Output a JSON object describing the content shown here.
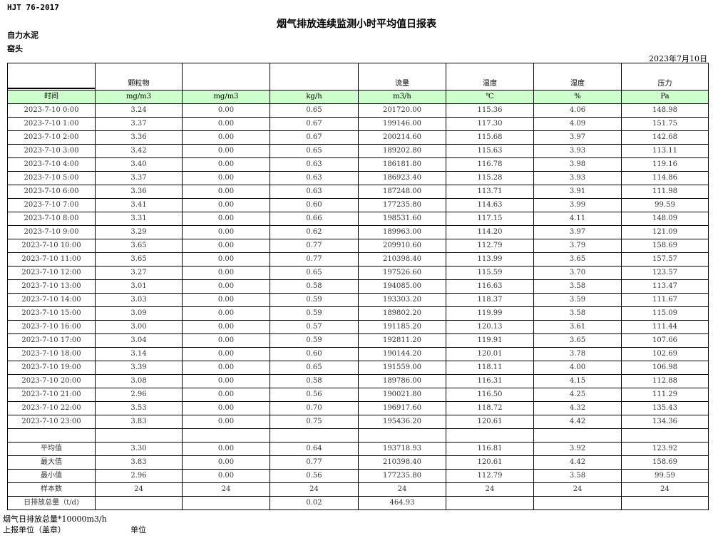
{
  "header": {
    "standard": "HJT  76-2017",
    "title": "烟气排放连续监测小时平均值日报表",
    "company": "自力水泥",
    "location": "窑头",
    "date": "2023年7月10日"
  },
  "table": {
    "top_headers": [
      "",
      "颗粒物",
      "",
      "",
      "流量",
      "温度",
      "湿度",
      "压力"
    ],
    "units": [
      "时间",
      "mg/m3",
      "mg/m3",
      "kg/h",
      "m3/h",
      "℃",
      "%",
      "Pa"
    ],
    "rows": [
      [
        "2023-7-10 0:00",
        "3.24",
        "0.00",
        "0.65",
        "201720.00",
        "115.36",
        "4.06",
        "148.98"
      ],
      [
        "2023-7-10 1:00",
        "3.37",
        "0.00",
        "0.67",
        "199146.00",
        "117.30",
        "4.09",
        "151.75"
      ],
      [
        "2023-7-10 2:00",
        "3.36",
        "0.00",
        "0.67",
        "200214.60",
        "115.68",
        "3.97",
        "142.68"
      ],
      [
        "2023-7-10 3:00",
        "3.42",
        "0.00",
        "0.65",
        "189202.80",
        "115.63",
        "3.93",
        "113.11"
      ],
      [
        "2023-7-10 4:00",
        "3.40",
        "0.00",
        "0.63",
        "186181.80",
        "116.78",
        "3.98",
        "119.16"
      ],
      [
        "2023-7-10 5:00",
        "3.37",
        "0.00",
        "0.63",
        "186923.40",
        "115.28",
        "3.93",
        "114.86"
      ],
      [
        "2023-7-10 6:00",
        "3.36",
        "0.00",
        "0.63",
        "187248.00",
        "113.71",
        "3.91",
        "111.98"
      ],
      [
        "2023-7-10 7:00",
        "3.41",
        "0.00",
        "0.60",
        "177235.80",
        "114.63",
        "3.99",
        "99.59"
      ],
      [
        "2023-7-10 8:00",
        "3.31",
        "0.00",
        "0.66",
        "198531.60",
        "117.15",
        "4.11",
        "148.09"
      ],
      [
        "2023-7-10 9:00",
        "3.29",
        "0.00",
        "0.62",
        "189963.00",
        "114.20",
        "3.97",
        "121.09"
      ],
      [
        "2023-7-10 10:00",
        "3.65",
        "0.00",
        "0.77",
        "209910.60",
        "112.79",
        "3.79",
        "158.69"
      ],
      [
        "2023-7-10 11:00",
        "3.65",
        "0.00",
        "0.77",
        "210398.40",
        "113.99",
        "3.65",
        "157.57"
      ],
      [
        "2023-7-10 12:00",
        "3.27",
        "0.00",
        "0.65",
        "197526.60",
        "115.59",
        "3.70",
        "123.57"
      ],
      [
        "2023-7-10 13:00",
        "3.01",
        "0.00",
        "0.58",
        "194085.00",
        "116.63",
        "3.58",
        "113.47"
      ],
      [
        "2023-7-10 14:00",
        "3.03",
        "0.00",
        "0.59",
        "193303.20",
        "118.37",
        "3.59",
        "111.67"
      ],
      [
        "2023-7-10 15:00",
        "3.09",
        "0.00",
        "0.59",
        "189802.20",
        "119.99",
        "3.58",
        "115.09"
      ],
      [
        "2023-7-10 16:00",
        "3.00",
        "0.00",
        "0.57",
        "191185.20",
        "120.13",
        "3.61",
        "111.44"
      ],
      [
        "2023-7-10 17:00",
        "3.04",
        "0.00",
        "0.59",
        "192811.20",
        "119.91",
        "3.65",
        "107.66"
      ],
      [
        "2023-7-10 18:00",
        "3.14",
        "0.00",
        "0.60",
        "190144.20",
        "120.01",
        "3.78",
        "102.69"
      ],
      [
        "2023-7-10 19:00",
        "3.39",
        "0.00",
        "0.65",
        "191559.00",
        "118.11",
        "4.00",
        "106.98"
      ],
      [
        "2023-7-10 20:00",
        "3.08",
        "0.00",
        "0.58",
        "189786.00",
        "116.31",
        "4.15",
        "112.88"
      ],
      [
        "2023-7-10 21:00",
        "2.96",
        "0.00",
        "0.56",
        "190021.80",
        "116.50",
        "4.25",
        "111.29"
      ],
      [
        "2023-7-10 22:00",
        "3.53",
        "0.00",
        "0.70",
        "196917.60",
        "118.72",
        "4.32",
        "135.43"
      ],
      [
        "2023-7-10 23:00",
        "3.83",
        "0.00",
        "0.75",
        "195436.20",
        "120.61",
        "4.42",
        "134.36"
      ]
    ],
    "summary": [
      [
        "平均值",
        "3.30",
        "0.00",
        "0.64",
        "193718.93",
        "116.81",
        "3.92",
        "123.92"
      ],
      [
        "最大值",
        "3.83",
        "0.00",
        "0.77",
        "210398.40",
        "120.61",
        "4.42",
        "158.69"
      ],
      [
        "最小值",
        "2.96",
        "0.00",
        "0.56",
        "177235.80",
        "112.79",
        "3.58",
        "99.59"
      ],
      [
        "样本数",
        "24",
        "24",
        "24",
        "24",
        "24",
        "24",
        "24"
      ],
      [
        "日排放总量（t/d)",
        "",
        "",
        "0.02",
        "464.93",
        "",
        "",
        ""
      ]
    ]
  },
  "footer": {
    "note": "烟气日排放总量*10000m3/h",
    "reporter_label": "上报单位（盖章）",
    "unit_label": "单位"
  },
  "colors": {
    "unit_row_bg": "#ccffcc"
  }
}
